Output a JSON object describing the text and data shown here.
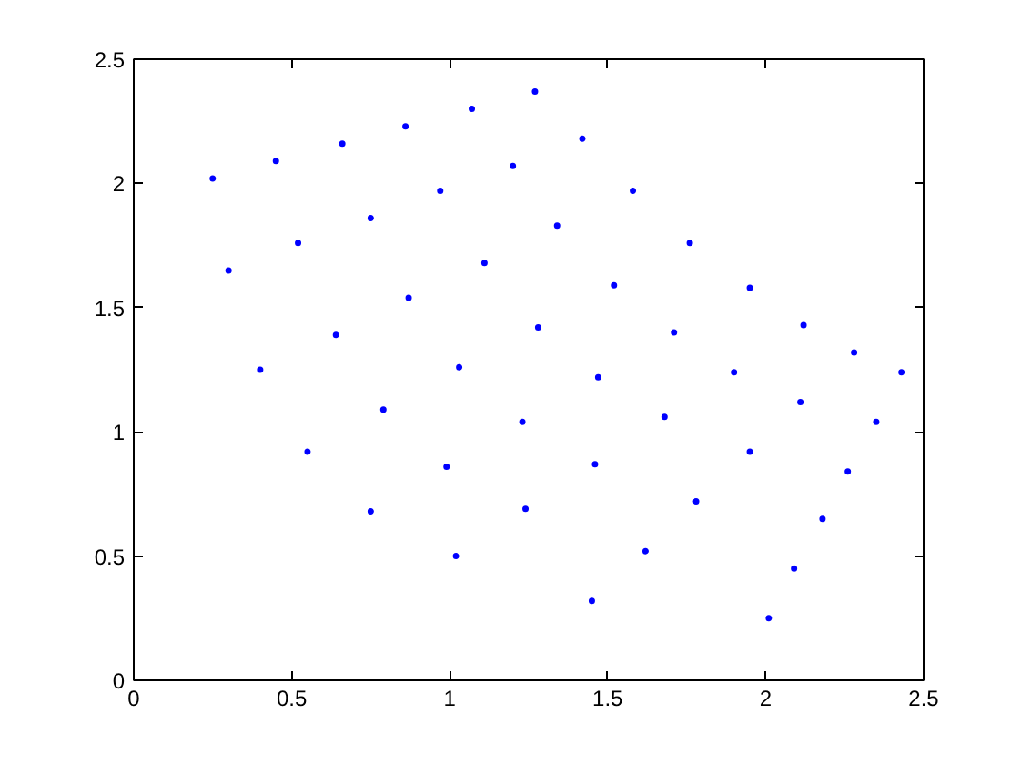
{
  "chart_data": {
    "type": "scatter",
    "marker": "circle",
    "grid": false,
    "xlim": [
      0,
      2.5
    ],
    "ylim": [
      0,
      2.5
    ],
    "xticks": [
      0,
      0.5,
      1,
      1.5,
      2,
      2.5
    ],
    "yticks": [
      0,
      0.5,
      1,
      1.5,
      2,
      2.5
    ],
    "series": [
      {
        "color": "#0000ff",
        "x": [
          0.25,
          0.45,
          0.66,
          0.86,
          1.07,
          1.27,
          0.3,
          0.52,
          0.75,
          0.97,
          1.2,
          1.42,
          0.4,
          0.64,
          0.87,
          1.11,
          1.34,
          1.58,
          0.55,
          0.79,
          1.03,
          1.28,
          1.52,
          1.76,
          0.75,
          0.99,
          1.23,
          1.47,
          1.71,
          1.95,
          1.02,
          1.24,
          1.46,
          1.68,
          1.9,
          2.12,
          1.45,
          1.62,
          1.78,
          1.95,
          2.11,
          2.28,
          2.01,
          2.09,
          2.18,
          2.26,
          2.35,
          2.43
        ],
        "values": [
          2.02,
          2.09,
          2.16,
          2.23,
          2.3,
          2.37,
          1.65,
          1.76,
          1.86,
          1.97,
          2.07,
          2.18,
          1.25,
          1.39,
          1.54,
          1.68,
          1.83,
          1.97,
          0.92,
          1.09,
          1.26,
          1.42,
          1.59,
          1.76,
          0.68,
          0.86,
          1.04,
          1.22,
          1.4,
          1.58,
          0.5,
          0.69,
          0.87,
          1.06,
          1.24,
          1.43,
          0.32,
          0.52,
          0.72,
          0.92,
          1.12,
          1.32,
          0.25,
          0.45,
          0.65,
          0.84,
          1.04,
          1.24
        ]
      }
    ]
  }
}
